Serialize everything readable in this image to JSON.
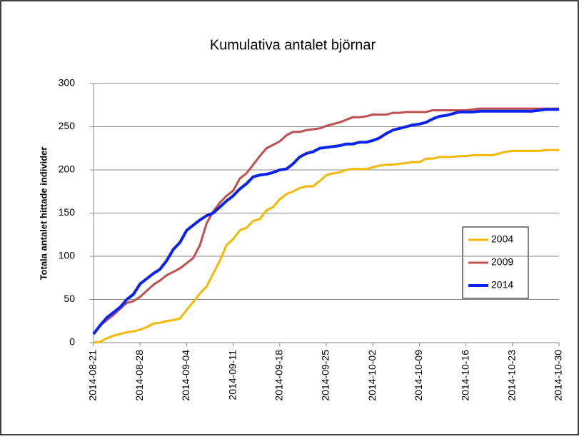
{
  "chart_data": {
    "type": "line",
    "title": "Kumulativa antalet björnar",
    "y_label": "Totala antalet hittade individer",
    "categories": [
      "2014-08-21",
      null,
      null,
      null,
      null,
      null,
      null,
      "2014-08-28",
      null,
      null,
      null,
      null,
      null,
      null,
      "2014-09-04",
      null,
      null,
      null,
      null,
      null,
      null,
      "2014-09-11",
      null,
      null,
      null,
      null,
      null,
      null,
      "2014-09-18",
      null,
      null,
      null,
      null,
      null,
      null,
      "2014-09-25",
      null,
      null,
      null,
      null,
      null,
      null,
      "2014-10-02",
      null,
      null,
      null,
      null,
      null,
      null,
      "2014-10-09",
      null,
      null,
      null,
      null,
      null,
      null,
      "2014-10-16",
      null,
      null,
      null,
      null,
      null,
      null,
      "2014-10-23",
      null,
      null,
      null,
      null,
      null,
      null,
      "2014-10-30"
    ],
    "series": [
      {
        "name": "2004",
        "color": "#f5b800",
        "values": [
          0,
          1,
          5,
          8,
          10,
          12,
          13,
          15,
          18,
          22,
          23,
          25,
          26,
          28,
          38,
          47,
          57,
          65,
          80,
          95,
          113,
          120,
          130,
          133,
          141,
          143,
          153,
          157,
          166,
          172,
          175,
          179,
          181,
          181,
          187,
          194,
          196,
          197,
          200,
          201,
          201,
          201,
          203,
          205,
          206,
          206,
          207,
          208,
          209,
          209,
          213,
          213,
          215,
          215,
          215,
          216,
          216,
          217,
          217,
          217,
          217,
          219,
          221,
          222,
          222,
          222,
          222,
          222,
          223,
          223,
          223
        ]
      },
      {
        "name": "2009",
        "color": "#c0504d",
        "values": [
          10,
          20,
          26,
          32,
          39,
          46,
          48,
          53,
          60,
          67,
          72,
          78,
          82,
          86,
          92,
          98,
          113,
          138,
          152,
          162,
          170,
          176,
          190,
          196,
          206,
          216,
          225,
          229,
          233,
          240,
          244,
          244,
          246,
          247,
          248,
          251,
          253,
          255,
          258,
          261,
          261,
          262,
          264,
          264,
          264,
          266,
          266,
          267,
          267,
          267,
          267,
          269,
          269,
          269,
          269,
          269,
          269,
          270,
          271,
          271,
          271,
          271,
          271,
          271,
          271,
          271,
          271,
          271,
          271,
          271,
          271
        ]
      },
      {
        "name": "2014",
        "color": "#0a24f0",
        "values": [
          10,
          20,
          29,
          35,
          41,
          50,
          56,
          68,
          74,
          80,
          85,
          95,
          108,
          116,
          130,
          136,
          142,
          147,
          150,
          157,
          164,
          170,
          178,
          184,
          192,
          194,
          195,
          197,
          200,
          201,
          207,
          215,
          219,
          221,
          225,
          226,
          227,
          228,
          230,
          230,
          232,
          232,
          234,
          237,
          242,
          246,
          248,
          250,
          252,
          253,
          255,
          259,
          262,
          263,
          265,
          267,
          267,
          267,
          268,
          268,
          268,
          268,
          268,
          268,
          268,
          268,
          268,
          269,
          270,
          270,
          270
        ]
      }
    ],
    "ylim": [
      0,
      300
    ],
    "yticks": [
      0,
      50,
      100,
      150,
      200,
      250,
      300
    ],
    "grid": true,
    "legend": "right"
  }
}
